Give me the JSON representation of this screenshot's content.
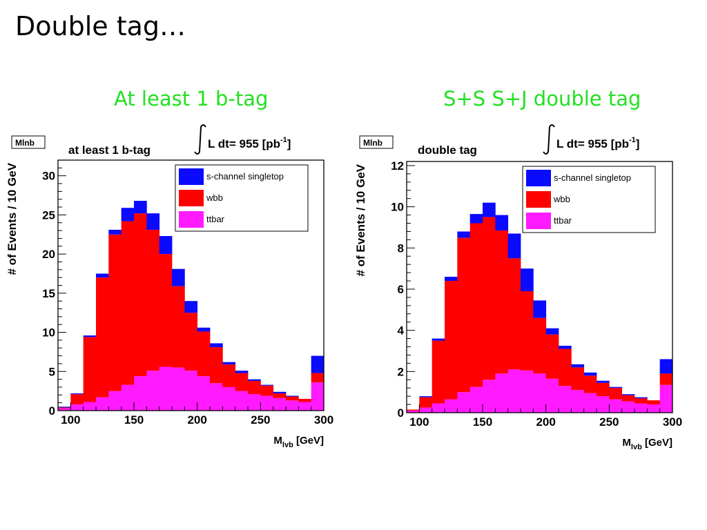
{
  "slide": {
    "title": "Double tag…",
    "left_caption": "At least 1 b-tag",
    "right_caption": "S+S S+J double tag"
  },
  "chart_data": [
    {
      "type": "bar",
      "stacked": true,
      "histogram": true,
      "tag": "Mlnb",
      "title": "at least 1 b-tag",
      "luminosity": {
        "label": "L dt= 955 [pb",
        "exponent": "-1",
        "close": "]"
      },
      "xlabel": {
        "main": "M",
        "sub": "lvb",
        "unit": " [GeV]"
      },
      "ylabel": "# of Events / 10 GeV",
      "xlim": [
        90,
        300
      ],
      "ylim": [
        0,
        32
      ],
      "xticks": [
        100,
        150,
        200,
        250,
        300
      ],
      "yticks": [
        0,
        5,
        10,
        15,
        20,
        25,
        30
      ],
      "legend_position": "top-right",
      "colors": {
        "ttbar": "#ff1aff",
        "wbb": "#ff0000",
        "schan": "#0a0aff"
      },
      "legend": [
        {
          "name": "s-channel singletop",
          "color": "#0a0aff"
        },
        {
          "name": "wbb",
          "color": "#ff0000"
        },
        {
          "name": "ttbar",
          "color": "#ff1aff"
        }
      ],
      "bin_low_edges": [
        90,
        100,
        110,
        120,
        130,
        140,
        150,
        160,
        170,
        180,
        190,
        200,
        210,
        220,
        230,
        240,
        250,
        260,
        270,
        280,
        290
      ],
      "ttbar": [
        0.3,
        0.8,
        1.1,
        1.7,
        2.5,
        3.3,
        4.4,
        5.1,
        5.6,
        5.5,
        5.1,
        4.4,
        3.5,
        3.0,
        2.5,
        2.1,
        1.9,
        1.6,
        1.3,
        1.1,
        3.6
      ],
      "wbb_top": [
        0.4,
        2.1,
        9.4,
        17.0,
        22.5,
        24.2,
        25.2,
        23.1,
        20.0,
        15.9,
        12.5,
        10.1,
        8.1,
        5.9,
        4.8,
        3.8,
        3.2,
        2.2,
        1.8,
        1.5,
        4.8
      ],
      "total": [
        0.5,
        2.2,
        9.6,
        17.5,
        23.1,
        25.9,
        26.8,
        25.2,
        22.3,
        18.1,
        14.0,
        10.6,
        8.6,
        6.2,
        5.1,
        4.0,
        3.3,
        2.4,
        1.9,
        1.5,
        7.0
      ]
    },
    {
      "type": "bar",
      "stacked": true,
      "histogram": true,
      "tag": "Mlnb",
      "title": "double tag",
      "luminosity": {
        "label": "L dt= 955 [pb",
        "exponent": "-1",
        "close": "]"
      },
      "xlabel": {
        "main": "M",
        "sub": "lvb",
        "unit": " [GeV]"
      },
      "ylabel": "# of Events / 10 GeV",
      "xlim": [
        90,
        300
      ],
      "ylim": [
        0,
        12.2
      ],
      "xticks": [
        100,
        150,
        200,
        250,
        300
      ],
      "yticks": [
        0,
        2,
        4,
        6,
        8,
        10,
        12
      ],
      "legend_position": "top-right",
      "colors": {
        "ttbar": "#ff1aff",
        "wbb": "#ff0000",
        "schan": "#0a0aff"
      },
      "legend": [
        {
          "name": "s-channel singletop",
          "color": "#0a0aff"
        },
        {
          "name": "wbb",
          "color": "#ff0000"
        },
        {
          "name": "ttbar",
          "color": "#ff1aff"
        }
      ],
      "bin_low_edges": [
        90,
        100,
        110,
        120,
        130,
        140,
        150,
        160,
        170,
        180,
        190,
        200,
        210,
        220,
        230,
        240,
        250,
        260,
        270,
        280,
        290
      ],
      "ttbar": [
        0.1,
        0.25,
        0.45,
        0.65,
        1.0,
        1.25,
        1.6,
        1.9,
        2.1,
        2.05,
        1.9,
        1.65,
        1.3,
        1.1,
        0.95,
        0.8,
        0.65,
        0.55,
        0.45,
        0.4,
        1.35
      ],
      "wbb_top": [
        0.15,
        0.75,
        3.5,
        6.4,
        8.5,
        9.2,
        9.5,
        8.85,
        7.5,
        5.9,
        4.6,
        3.8,
        3.1,
        2.2,
        1.8,
        1.45,
        1.2,
        0.85,
        0.7,
        0.6,
        1.9
      ],
      "total": [
        0.15,
        0.8,
        3.6,
        6.6,
        8.8,
        9.65,
        10.2,
        9.6,
        8.7,
        7.0,
        5.45,
        4.1,
        3.25,
        2.35,
        1.95,
        1.55,
        1.25,
        0.9,
        0.75,
        0.6,
        2.6
      ]
    }
  ]
}
